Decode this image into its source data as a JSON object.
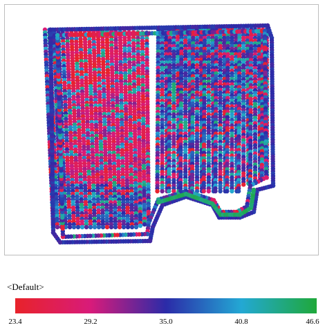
{
  "legend": {
    "title": "<Default>",
    "min": 23.4,
    "max": 46.6,
    "ticks": [
      "23.4",
      "29.2",
      "35.0",
      "40.8",
      "46.6"
    ],
    "colors": [
      "#e8232a",
      "#d81b7a",
      "#2b2ba8",
      "#23a8d4",
      "#1fa83a"
    ]
  },
  "map": {
    "outline_color": "#1f1f9c",
    "dominant_value": 35.0,
    "low_zone_value": 25.0,
    "high_zone_value": 44.0
  }
}
